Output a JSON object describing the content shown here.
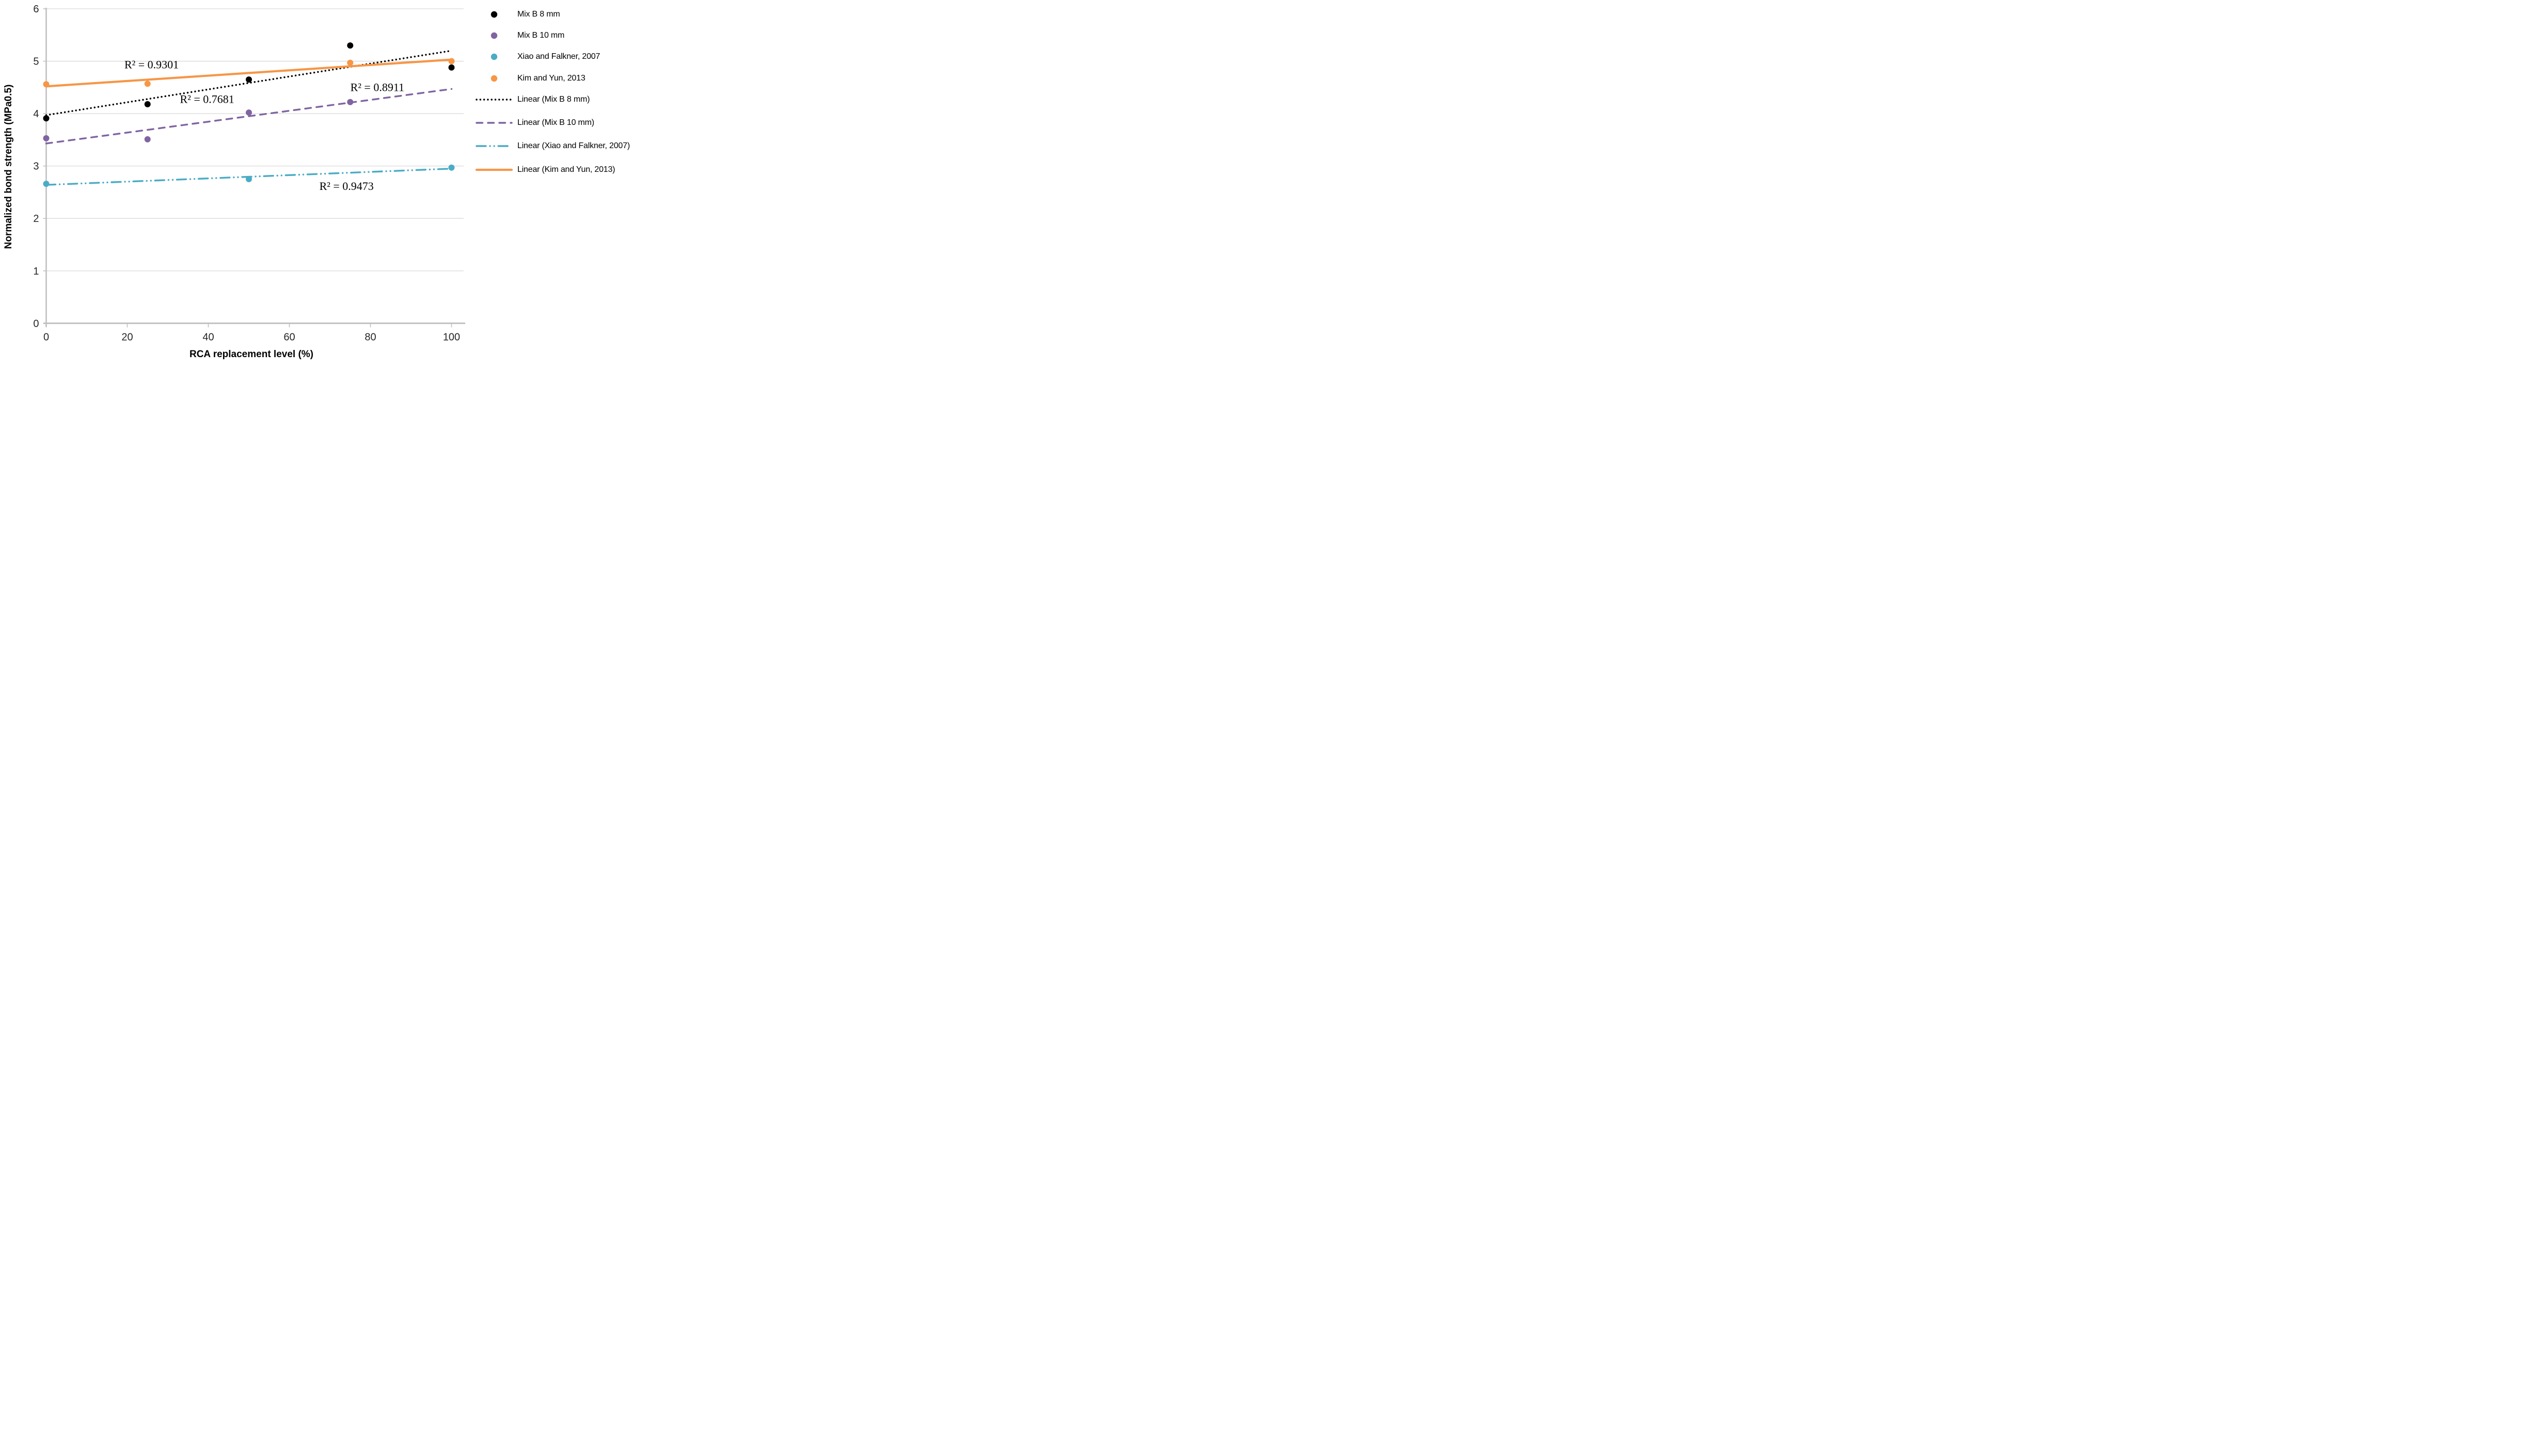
{
  "chart_data": {
    "type": "scatter",
    "title": "",
    "xlabel": "RCA replacement level (%)",
    "ylabel": "Normalized bond strength (MPa0.5)",
    "xlim": [
      0,
      100
    ],
    "ylim": [
      0,
      6
    ],
    "x_ticks": [
      0,
      20,
      40,
      60,
      80,
      100
    ],
    "y_ticks": [
      0,
      1,
      2,
      3,
      4,
      5,
      6
    ],
    "grid": "horizontal-only",
    "legend_position": "right",
    "series": [
      {
        "name": "Mix B 8 mm",
        "color": "#000000",
        "marker": "circle",
        "points": [
          [
            0,
            3.91
          ],
          [
            25,
            4.18
          ],
          [
            50,
            4.65
          ],
          [
            75,
            5.3
          ],
          [
            100,
            4.88
          ]
        ],
        "trendline": {
          "label": "Linear (Mix B 8 mm)",
          "style": "dotted",
          "y_start": 3.97,
          "y_end": 5.2,
          "r_squared_text": "R² = 0.7681",
          "r2_label_pos": [
            39.7,
            4.28
          ]
        }
      },
      {
        "name": "Mix B 10 mm",
        "color": "#8064A2",
        "marker": "circle",
        "points": [
          [
            0,
            3.53
          ],
          [
            25,
            3.51
          ],
          [
            50,
            4.02
          ],
          [
            75,
            4.22
          ]
        ],
        "trendline": {
          "label": "Linear (Mix B 10 mm)",
          "style": "dashed",
          "y_start": 3.43,
          "y_end": 4.47,
          "r_squared_text": "R² = 0.8911",
          "r2_label_pos": [
            81.7,
            4.51
          ]
        }
      },
      {
        "name": "Xiao and Falkner, 2007",
        "color": "#4BACC6",
        "marker": "circle",
        "points": [
          [
            0,
            2.66
          ],
          [
            50,
            2.75
          ],
          [
            100,
            2.97
          ]
        ],
        "trendline": {
          "label": "Linear (Xiao and Falkner, 2007)",
          "style": "dashdotdot",
          "y_start": 2.64,
          "y_end": 2.95,
          "r_squared_text": "R² = 0.9473",
          "r2_label_pos": [
            74.1,
            2.62
          ]
        }
      },
      {
        "name": "Kim and Yun, 2013",
        "color": "#F79646",
        "marker": "circle",
        "points": [
          [
            0,
            4.56
          ],
          [
            25,
            4.57
          ],
          [
            75,
            4.97
          ],
          [
            100,
            5.0
          ]
        ],
        "trendline": {
          "label": "Linear (Kim and Yun, 2013)",
          "style": "solid",
          "y_start": 4.52,
          "y_end": 5.03,
          "r_squared_text": "R² = 0.9301",
          "r2_label_pos": [
            26.0,
            4.94
          ]
        }
      }
    ]
  },
  "legend": {
    "items": [
      {
        "type": "marker",
        "label": "Mix B 8 mm",
        "color": "#000000"
      },
      {
        "type": "marker",
        "label": "Mix B 10 mm",
        "color": "#8064A2"
      },
      {
        "type": "marker",
        "label": "Xiao and Falkner, 2007",
        "color": "#4BACC6"
      },
      {
        "type": "marker",
        "label": "Kim and Yun, 2013",
        "color": "#F79646"
      },
      {
        "type": "line",
        "style": "dotted",
        "label": "Linear (Mix B 8 mm)",
        "color": "#000000"
      },
      {
        "type": "line",
        "style": "dashed",
        "label": "Linear (Mix B 10 mm)",
        "color": "#8064A2"
      },
      {
        "type": "line",
        "style": "dashdotdot",
        "label": "Linear (Xiao and Falkner, 2007)",
        "color": "#4BACC6"
      },
      {
        "type": "line",
        "style": "solid",
        "label": "Linear (Kim and Yun, 2013)",
        "color": "#F79646"
      }
    ]
  },
  "colors": {
    "background": "#FFFFFF",
    "gridline": "#D9D9D9",
    "axis": "#BFBFBF",
    "text": "#000000",
    "black_series": "#000000",
    "purple_series": "#8064A2",
    "teal_series": "#4BACC6",
    "orange_series": "#F79646"
  }
}
